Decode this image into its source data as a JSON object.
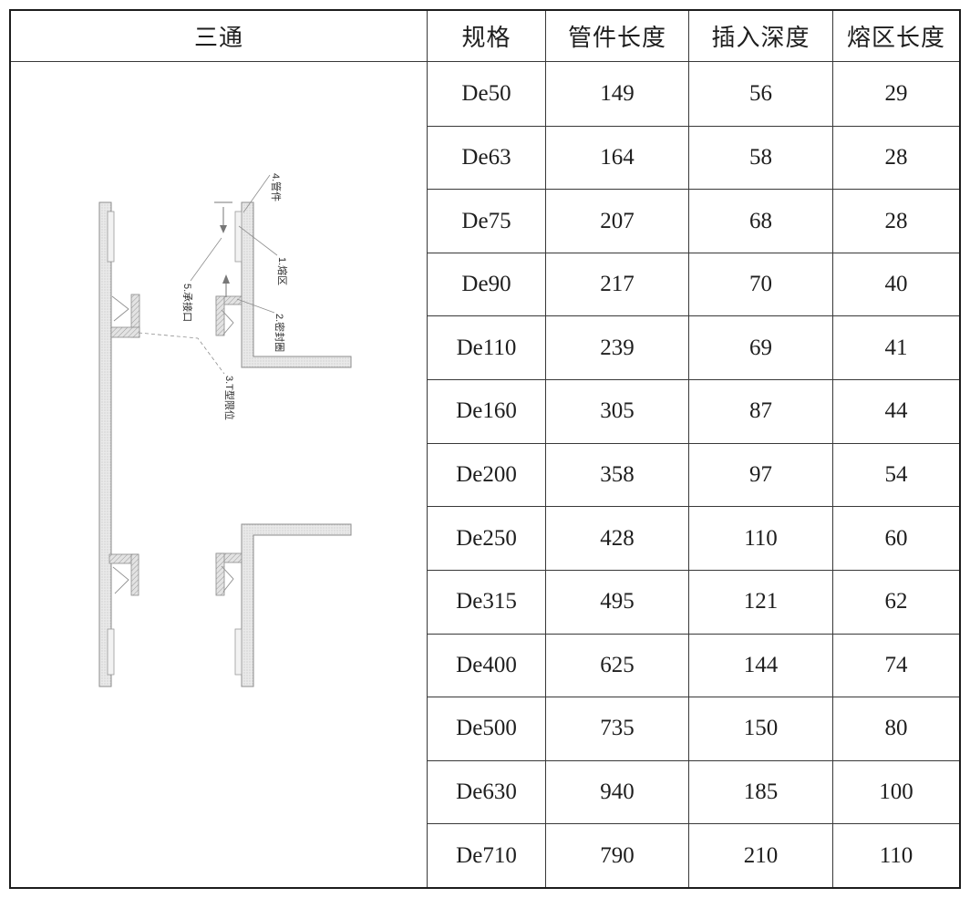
{
  "title_cell": {
    "label": "三通"
  },
  "table": {
    "headers": [
      "规格",
      "管件长度",
      "插入深度",
      "熔区长度"
    ],
    "rows": [
      [
        "De50",
        "149",
        "56",
        "29"
      ],
      [
        "De63",
        "164",
        "58",
        "28"
      ],
      [
        "De75",
        "207",
        "68",
        "28"
      ],
      [
        "De90",
        "217",
        "70",
        "40"
      ],
      [
        "De110",
        "239",
        "69",
        "41"
      ],
      [
        "De160",
        "305",
        "87",
        "44"
      ],
      [
        "De200",
        "358",
        "97",
        "54"
      ],
      [
        "De250",
        "428",
        "110",
        "60"
      ],
      [
        "De315",
        "495",
        "121",
        "62"
      ],
      [
        "De400",
        "625",
        "144",
        "74"
      ],
      [
        "De500",
        "735",
        "150",
        "80"
      ],
      [
        "De630",
        "940",
        "185",
        "100"
      ],
      [
        "De710",
        "790",
        "210",
        "110"
      ]
    ]
  },
  "diagram": {
    "labels": {
      "fusion_zone": "1.熔区",
      "seal_ring": "2.密封圈",
      "t_stop": "3.T型限位",
      "fitting": "4.管件",
      "socket": "5.承接口"
    }
  },
  "colors": {
    "outer_border": "#1c1c1c",
    "grid_line": "#383838",
    "text": "#1e1e1e",
    "diagram_line": "#8c8c8c"
  }
}
